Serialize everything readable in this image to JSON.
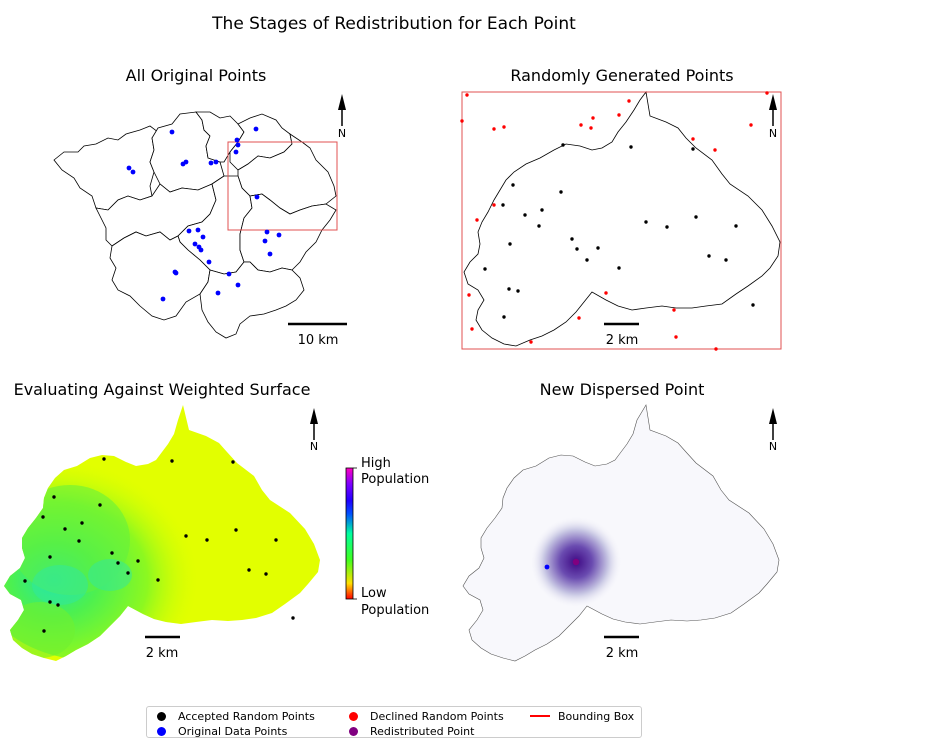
{
  "figure_title": "The Stages of Redistribution for Each Point",
  "colors": {
    "accepted": "#000000",
    "declined": "#ff0000",
    "original": "#0000ff",
    "redistributed": "#800080",
    "bbox": "#e05050"
  },
  "chart_data": [
    {
      "type": "scatter",
      "title": "All Original Points",
      "scalebar": "10 km",
      "north": "N",
      "series": [
        {
          "name": "Original Data Points",
          "points": [
            [
              172,
              132
            ],
            [
              256,
              129
            ],
            [
              237,
              140
            ],
            [
              238,
              145
            ],
            [
              236,
              152
            ],
            [
              129,
              168
            ],
            [
              133,
              172
            ],
            [
              186,
              162
            ],
            [
              183,
              164
            ],
            [
              211,
              163
            ],
            [
              216,
              162
            ],
            [
              257,
              197
            ],
            [
              189,
              231
            ],
            [
              198,
              230
            ],
            [
              203,
              237
            ],
            [
              195,
              244
            ],
            [
              201,
              250
            ],
            [
              199,
              247
            ],
            [
              267,
              232
            ],
            [
              279,
              235
            ],
            [
              265,
              241
            ],
            [
              270,
              254
            ],
            [
              209,
              262
            ],
            [
              175,
              272
            ],
            [
              176,
              273
            ],
            [
              229,
              274
            ],
            [
              238,
              285
            ],
            [
              218,
              293
            ],
            [
              163,
              299
            ]
          ]
        }
      ]
    },
    {
      "type": "scatter",
      "title": "Randomly Generated Points",
      "scalebar": "2 km",
      "north": "N",
      "series": [
        {
          "name": "Accepted Random Points",
          "points": [
            [
              563,
              145
            ],
            [
              631,
              147
            ],
            [
              693,
              149
            ],
            [
              513,
              185
            ],
            [
              561,
              192
            ],
            [
              503,
              205
            ],
            [
              542,
              210
            ],
            [
              525,
              215
            ],
            [
              539,
              226
            ],
            [
              646,
              222
            ],
            [
              667,
              227
            ],
            [
              696,
              217
            ],
            [
              736,
              226
            ],
            [
              572,
              239
            ],
            [
              577,
              249
            ],
            [
              598,
              248
            ],
            [
              510,
              244
            ],
            [
              587,
              260
            ],
            [
              619,
              268
            ],
            [
              709,
              256
            ],
            [
              726,
              260
            ],
            [
              485,
              269
            ],
            [
              509,
              289
            ],
            [
              518,
              291
            ],
            [
              753,
              305
            ],
            [
              504,
              317
            ]
          ]
        },
        {
          "name": "Declined Random Points",
          "points": [
            [
              467,
              95
            ],
            [
              629,
              101
            ],
            [
              767,
              93
            ],
            [
              462,
              121
            ],
            [
              494,
              129
            ],
            [
              504,
              127
            ],
            [
              581,
              125
            ],
            [
              591,
              128
            ],
            [
              593,
              118
            ],
            [
              619,
              115
            ],
            [
              751,
              125
            ],
            [
              693,
              139
            ],
            [
              715,
              150
            ],
            [
              477,
              220
            ],
            [
              494,
              205
            ],
            [
              469,
              295
            ],
            [
              606,
              293
            ],
            [
              674,
              310
            ],
            [
              579,
              318
            ],
            [
              472,
              329
            ],
            [
              676,
              337
            ],
            [
              531,
              342
            ],
            [
              716,
              349
            ]
          ]
        }
      ]
    },
    {
      "type": "heatmap",
      "title": "Evaluating Against Weighted Surface",
      "scalebar": "2 km",
      "north": "N",
      "colorbar_high": "High\nPopulation",
      "colorbar_low": "Low\nPopulation",
      "series": [
        {
          "name": "Accepted Random Points",
          "points": [
            [
              104,
              459
            ],
            [
              172,
              461
            ],
            [
              233,
              462
            ],
            [
              54,
              497
            ],
            [
              100,
              505
            ],
            [
              43,
              517
            ],
            [
              82,
              523
            ],
            [
              65,
              529
            ],
            [
              79,
              541
            ],
            [
              186,
              536
            ],
            [
              207,
              540
            ],
            [
              236,
              530
            ],
            [
              276,
              540
            ],
            [
              50,
              557
            ],
            [
              112,
              553
            ],
            [
              118,
              563
            ],
            [
              138,
              561
            ],
            [
              128,
              573
            ],
            [
              249,
              570
            ],
            [
              266,
              574
            ],
            [
              25,
              581
            ],
            [
              158,
              580
            ],
            [
              50,
              602
            ],
            [
              58,
              605
            ],
            [
              293,
              618
            ],
            [
              44,
              631
            ]
          ]
        }
      ]
    },
    {
      "type": "heatmap",
      "title": "New Dispersed Point",
      "scalebar": "2 km",
      "north": "N",
      "series": [
        {
          "name": "Original Data Points",
          "points": [
            [
              547,
              567
            ]
          ]
        },
        {
          "name": "Redistributed Point",
          "points": [
            [
              576,
              562
            ]
          ]
        }
      ]
    }
  ],
  "legend": {
    "accepted": "Accepted Random Points",
    "original": "Original Data Points",
    "declined": "Declined Random Points",
    "redistributed": "Redistributed Point",
    "bbox": "Bounding Box"
  }
}
